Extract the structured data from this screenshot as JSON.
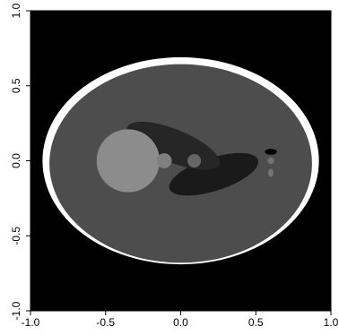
{
  "chart_data": {
    "type": "heatmap",
    "title": "",
    "xlabel": "",
    "ylabel": "",
    "xlim": [
      -1.0,
      1.0
    ],
    "ylim": [
      -1.0,
      1.0
    ],
    "grid": false,
    "x_ticks": [
      {
        "value": -1.0,
        "label": "-1.0"
      },
      {
        "value": -0.5,
        "label": "-0.5"
      },
      {
        "value": 0.0,
        "label": "0.0"
      },
      {
        "value": 0.5,
        "label": "0.5"
      },
      {
        "value": 1.0,
        "label": "1.0"
      }
    ],
    "y_ticks": [
      {
        "value": -1.0,
        "label": "-1.0"
      },
      {
        "value": -0.5,
        "label": "-0.5"
      },
      {
        "value": 0.0,
        "label": "0.0"
      },
      {
        "value": 0.5,
        "label": "0.5"
      },
      {
        "value": 1.0,
        "label": "1.0"
      }
    ],
    "background_intensity": 0.0,
    "shapes": [
      {
        "name": "outer-skull",
        "cx": 0.0,
        "cy": 0.0,
        "rx": 0.92,
        "ry": 0.69,
        "angle": 0,
        "intensity": 1.0
      },
      {
        "name": "brain",
        "cx": 0.0,
        "cy": -0.018,
        "rx": 0.874,
        "ry": 0.662,
        "angle": 0,
        "intensity": 0.3
      },
      {
        "name": "right-ventricle",
        "cx": 0.22,
        "cy": -0.09,
        "rx": 0.31,
        "ry": 0.11,
        "angle": 18,
        "intensity": 0.1
      },
      {
        "name": "left-ventricle",
        "cx": -0.05,
        "cy": 0.1,
        "rx": 0.33,
        "ry": 0.11,
        "angle": -22,
        "intensity": 0.15
      },
      {
        "name": "large-lesion",
        "cx": -0.35,
        "cy": 0.0,
        "rx": 0.21,
        "ry": 0.21,
        "angle": 0,
        "intensity": 0.55
      },
      {
        "name": "small-blob-center",
        "cx": -0.11,
        "cy": 0.0,
        "rx": 0.05,
        "ry": 0.05,
        "angle": 0,
        "intensity": 0.5
      },
      {
        "name": "small-blob-right",
        "cx": 0.09,
        "cy": 0.0,
        "rx": 0.045,
        "ry": 0.045,
        "angle": 0,
        "intensity": 0.4
      },
      {
        "name": "dark-dot",
        "cx": 0.6,
        "cy": 0.06,
        "rx": 0.04,
        "ry": 0.02,
        "angle": 0,
        "intensity": 0.0
      },
      {
        "name": "small-dot-1",
        "cx": 0.6,
        "cy": 0.0,
        "rx": 0.022,
        "ry": 0.022,
        "angle": 0,
        "intensity": 0.45
      },
      {
        "name": "small-dot-2",
        "cx": 0.6,
        "cy": -0.08,
        "rx": 0.018,
        "ry": 0.028,
        "angle": 0,
        "intensity": 0.45
      }
    ]
  }
}
